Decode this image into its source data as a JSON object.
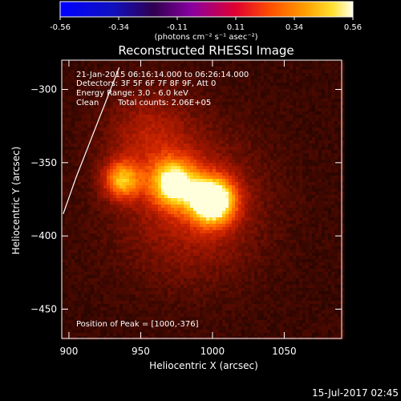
{
  "chart_data": {
    "type": "heatmap",
    "title": "Reconstructed RHESSI Image",
    "xlabel": "Heliocentric X (arcsec)",
    "ylabel": "Heliocentric Y (arcsec)",
    "xlim": [
      895,
      1090
    ],
    "ylim": [
      -470,
      -280
    ],
    "xticks": [
      900,
      950,
      1000,
      1050
    ],
    "yticks": [
      -300,
      -350,
      -400,
      -450
    ],
    "colorbar": {
      "vmin": -0.56,
      "vmax": 0.56,
      "ticks": [
        "-0.56",
        "-0.34",
        "-0.11",
        "0.11",
        "0.34",
        "0.56"
      ],
      "unit_label": "(photons cm⁻² s⁻¹ asec⁻²)",
      "colormap": "blue-purple-red-orange-yellow-white"
    },
    "sources": [
      {
        "x": 1000,
        "y": -376,
        "peak": 0.56,
        "sigma": 11
      },
      {
        "x": 973,
        "y": -364,
        "peak": 0.42,
        "sigma": 11
      },
      {
        "x": 937,
        "y": -362,
        "peak": 0.33,
        "sigma": 9
      },
      {
        "x": 955,
        "y": -330,
        "peak": 0.12,
        "sigma": 22
      },
      {
        "x": 985,
        "y": -380,
        "peak": 0.16,
        "sigma": 35
      }
    ],
    "background_level": 0.08,
    "limb_curve": [
      [
        896,
        -385
      ],
      [
        905,
        -360
      ],
      [
        915,
        -335
      ],
      [
        925,
        -310
      ],
      [
        935,
        -285
      ]
    ],
    "annotations": {
      "time_range": "21-Jan-2015 06:16:14.000 to 06:26:14.000",
      "detectors": "Detectors: 3F 5F 6F 7F 8F 9F, Att 0",
      "energy": "Energy Range: 3.0 - 6.0 keV",
      "method": "Clean",
      "counts": "Total counts: 2.06E+05",
      "peak": "Position of Peak = [1000,-376]"
    },
    "timestamp": "15-Jul-2017 02:45"
  }
}
